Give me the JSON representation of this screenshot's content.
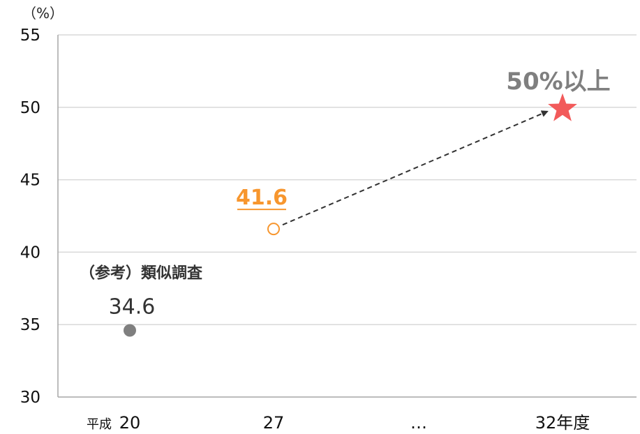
{
  "chart_data": {
    "type": "scatter",
    "unit_label": "（%）",
    "ylim": [
      30,
      55
    ],
    "yticks": [
      30,
      35,
      40,
      45,
      50,
      55
    ],
    "grid": true,
    "x_categories": [
      {
        "prefix": "平成",
        "label": "20"
      },
      {
        "prefix": "",
        "label": "27"
      },
      {
        "prefix": "",
        "label": "…"
      },
      {
        "prefix": "",
        "label": "32年度"
      }
    ],
    "points": [
      {
        "x": "20",
        "y": 34.6,
        "label": "34.6",
        "note": "（参考）類似調査",
        "style": "filled-circle",
        "color": "#7f7f7f"
      },
      {
        "x": "27",
        "y": 41.6,
        "label": "41.6",
        "style": "open-circle",
        "color": "#f7962e"
      },
      {
        "x": "32年度",
        "y": 50,
        "label": "50%以上",
        "style": "star",
        "color": "#f25a5a"
      }
    ],
    "arrow": {
      "from": "27",
      "to": "32年度",
      "style": "dashed",
      "color": "#333333"
    }
  }
}
